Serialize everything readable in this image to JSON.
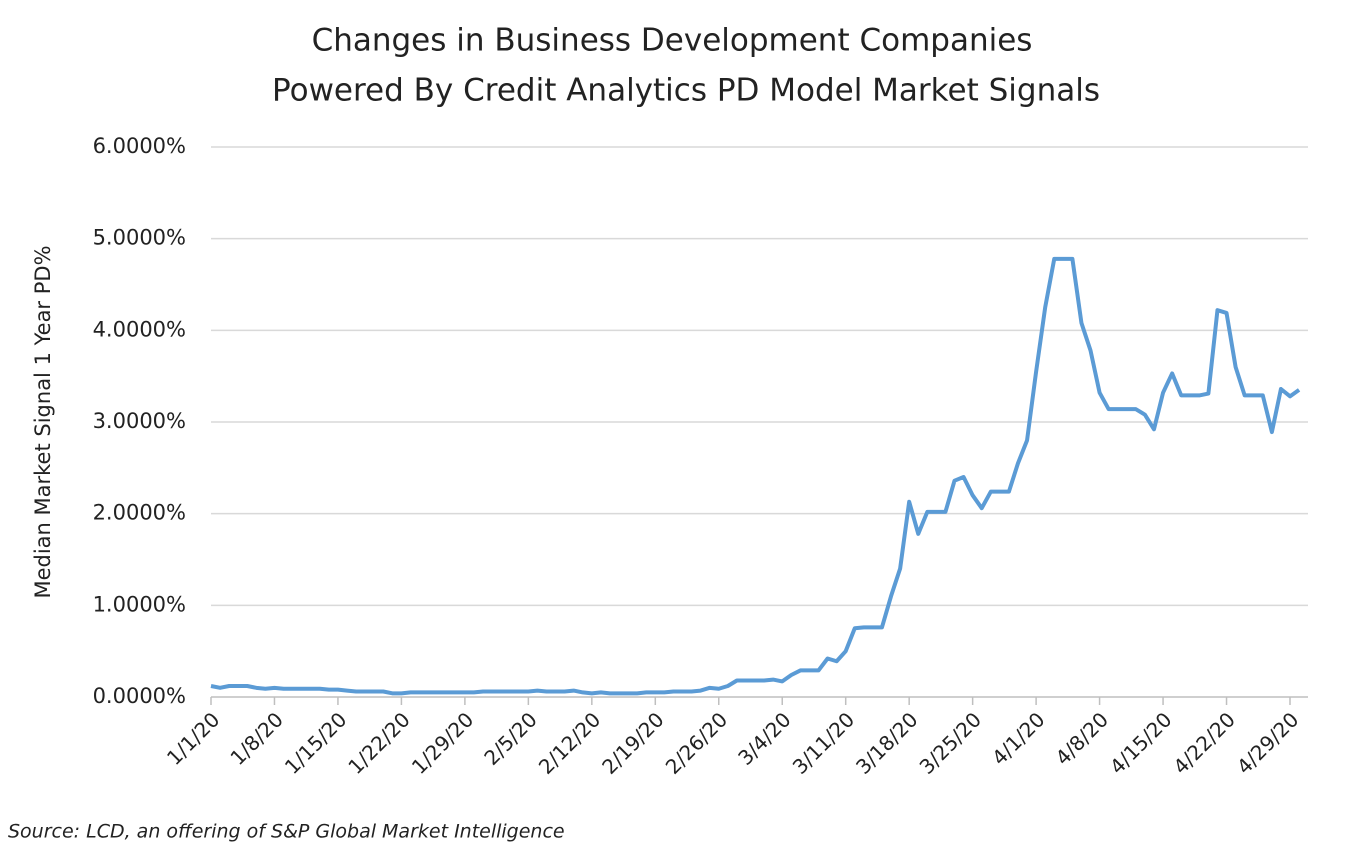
{
  "chart_data": {
    "type": "line",
    "title": [
      "Changes in Business Development Companies",
      "Powered By Credit Analytics PD Model Market Signals"
    ],
    "y_label": "Median Market Signal 1 Year PD%",
    "source": "Source: LCD, an offering of S&P Global Market Intelligence",
    "color": "#5b9bd5",
    "grid": true,
    "ylim": [
      0,
      6
    ],
    "yticks": [
      {
        "value": 0,
        "label": "0.0000%"
      },
      {
        "value": 1,
        "label": "1.0000%"
      },
      {
        "value": 2,
        "label": "2.0000%"
      },
      {
        "value": 3,
        "label": "3.0000%"
      },
      {
        "value": 4,
        "label": "4.0000%"
      },
      {
        "value": 5,
        "label": "5.0000%"
      },
      {
        "value": 6,
        "label": "6.0000%"
      }
    ],
    "categories": [
      "1/1/20",
      null,
      null,
      null,
      null,
      null,
      null,
      "1/8/20",
      null,
      null,
      null,
      null,
      null,
      null,
      "1/15/20",
      null,
      null,
      null,
      null,
      null,
      null,
      "1/22/20",
      null,
      null,
      null,
      null,
      null,
      null,
      "1/29/20",
      null,
      null,
      null,
      null,
      null,
      null,
      "2/5/20",
      null,
      null,
      null,
      null,
      null,
      null,
      "2/12/20",
      null,
      null,
      null,
      null,
      null,
      null,
      "2/19/20",
      null,
      null,
      null,
      null,
      null,
      null,
      "2/26/20",
      null,
      null,
      null,
      null,
      null,
      null,
      "3/4/20",
      null,
      null,
      null,
      null,
      null,
      null,
      "3/11/20",
      null,
      null,
      null,
      null,
      null,
      null,
      "3/18/20",
      null,
      null,
      null,
      null,
      null,
      null,
      "3/25/20",
      null,
      null,
      null,
      null,
      null,
      null,
      "4/1/20",
      null,
      null,
      null,
      null,
      null,
      null,
      "4/8/20",
      null,
      null,
      null,
      null,
      null,
      null,
      "4/15/20",
      null,
      null,
      null,
      null,
      null,
      null,
      "4/22/20",
      null,
      null,
      null,
      null,
      null,
      null,
      "4/29/20",
      null
    ],
    "values": [
      0.12,
      0.1,
      0.12,
      0.12,
      0.12,
      0.1,
      0.09,
      0.1,
      0.09,
      0.09,
      0.09,
      0.09,
      0.09,
      0.08,
      0.08,
      0.07,
      0.06,
      0.06,
      0.06,
      0.06,
      0.04,
      0.04,
      0.05,
      0.05,
      0.05,
      0.05,
      0.05,
      0.05,
      0.05,
      0.05,
      0.06,
      0.06,
      0.06,
      0.06,
      0.06,
      0.06,
      0.07,
      0.06,
      0.06,
      0.06,
      0.07,
      0.05,
      0.04,
      0.05,
      0.04,
      0.04,
      0.04,
      0.04,
      0.05,
      0.05,
      0.05,
      0.06,
      0.06,
      0.06,
      0.07,
      0.1,
      0.09,
      0.12,
      0.18,
      0.18,
      0.18,
      0.18,
      0.19,
      0.17,
      0.24,
      0.29,
      0.29,
      0.29,
      0.42,
      0.39,
      0.5,
      0.75,
      0.76,
      0.76,
      0.76,
      1.1,
      1.4,
      2.13,
      1.78,
      2.02,
      2.02,
      2.02,
      2.36,
      2.4,
      2.2,
      2.06,
      2.24,
      2.24,
      2.24,
      2.55,
      2.8,
      3.55,
      4.25,
      4.78,
      4.78,
      4.78,
      4.08,
      3.78,
      3.32,
      3.14,
      3.14,
      3.14,
      3.14,
      3.08,
      2.92,
      3.32,
      3.53,
      3.29,
      3.29,
      3.29,
      3.31,
      4.22,
      4.19,
      3.6,
      3.29,
      3.29,
      3.29,
      2.89,
      3.36,
      3.28,
      3.35
    ]
  }
}
